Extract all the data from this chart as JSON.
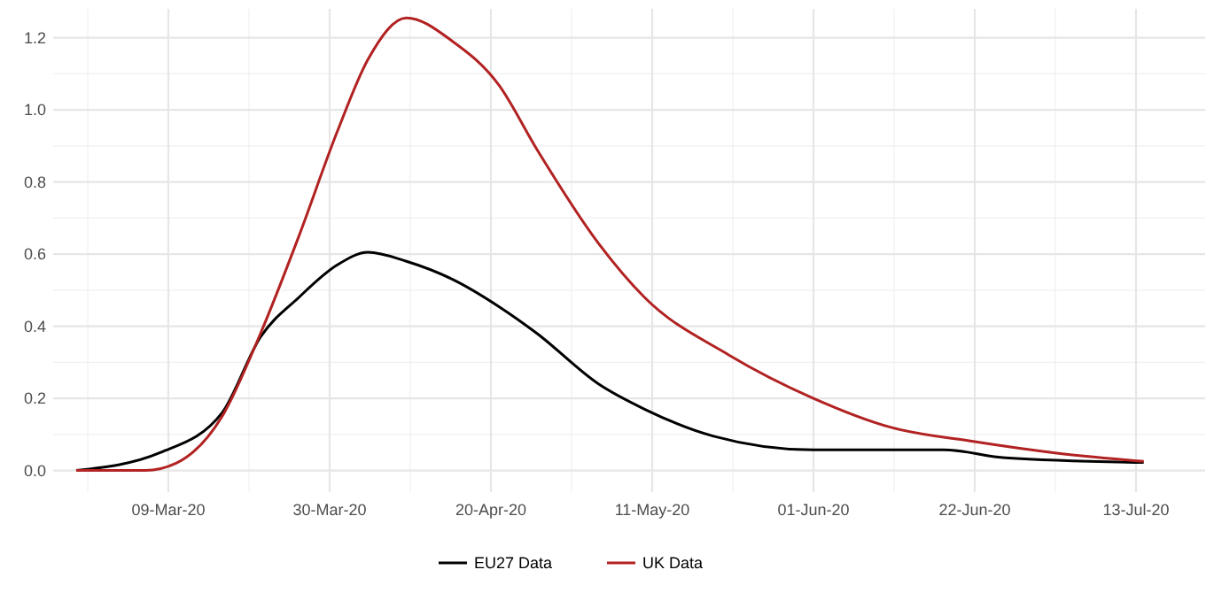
{
  "chart_data": {
    "type": "line",
    "xlim": [
      "2020-02-23",
      "2020-07-22"
    ],
    "ylim": [
      -0.06,
      1.28
    ],
    "xticks": [
      {
        "value": "2020-03-09",
        "label": "09-Mar-20"
      },
      {
        "value": "2020-03-30",
        "label": "30-Mar-20"
      },
      {
        "value": "2020-04-20",
        "label": "20-Apr-20"
      },
      {
        "value": "2020-05-11",
        "label": "11-May-20"
      },
      {
        "value": "2020-06-01",
        "label": "01-Jun-20"
      },
      {
        "value": "2020-06-22",
        "label": "22-Jun-20"
      },
      {
        "value": "2020-07-13",
        "label": "13-Jul-20"
      }
    ],
    "yticks": [
      {
        "value": 0,
        "label": "0.0"
      },
      {
        "value": 0.2,
        "label": "0.2"
      },
      {
        "value": 0.4,
        "label": "0.4"
      },
      {
        "value": 0.6,
        "label": "0.6"
      },
      {
        "value": 0.8,
        "label": "0.8"
      },
      {
        "value": 1,
        "label": "1.0"
      },
      {
        "value": 1.2,
        "label": "1.2"
      }
    ],
    "grid": true,
    "legend": "bottom",
    "marker": "none",
    "line_style": "solid",
    "series": [
      {
        "name": "EU27 Data",
        "color": "#000000",
        "x": [
          "2020-02-26",
          "2020-03-08",
          "2020-03-16",
          "2020-03-21",
          "2020-03-26",
          "2020-03-31",
          "2020-04-04",
          "2020-04-09",
          "2020-04-15",
          "2020-04-21",
          "2020-04-26",
          "2020-05-04",
          "2020-05-10",
          "2020-05-19",
          "2020-06-01",
          "2020-06-18",
          "2020-06-26",
          "2020-07-14"
        ],
        "values": [
          0,
          0.05,
          0.16,
          0.37,
          0.48,
          0.57,
          0.605,
          0.58,
          0.53,
          0.455,
          0.38,
          0.24,
          0.17,
          0.095,
          0.057,
          0.057,
          0.035,
          0.022
        ]
      },
      {
        "name": "UK Data",
        "color": "#b22222",
        "x": [
          "2020-02-26",
          "2020-03-06",
          "2020-03-10",
          "2020-03-16",
          "2020-03-21",
          "2020-03-26",
          "2020-03-31",
          "2020-04-04",
          "2020-04-09",
          "2020-04-15",
          "2020-04-21",
          "2020-04-26",
          "2020-05-04",
          "2020-05-10",
          "2020-05-21",
          "2020-06-01",
          "2020-06-11",
          "2020-06-22",
          "2020-07-02",
          "2020-07-14"
        ],
        "values": [
          0,
          0,
          0.02,
          0.15,
          0.38,
          0.65,
          0.94,
          1.14,
          1.255,
          1.19,
          1.07,
          0.89,
          0.63,
          0.48,
          0.32,
          0.2,
          0.12,
          0.08,
          0.05,
          0.025
        ]
      }
    ]
  }
}
